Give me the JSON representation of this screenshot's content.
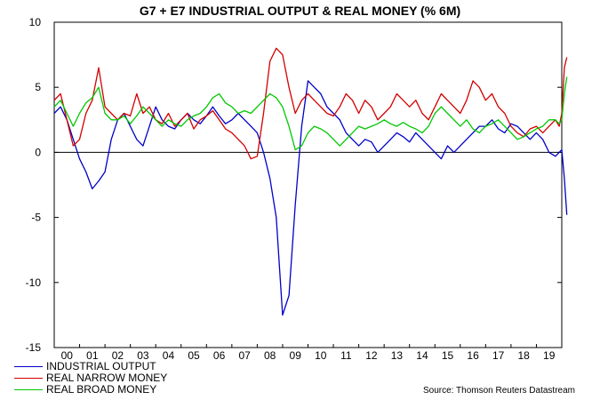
{
  "chart_data": {
    "type": "line",
    "title": "G7 + E7 INDUSTRIAL OUTPUT & REAL MONEY (% 6M)",
    "source": "Source: Thomson Reuters Datastream",
    "xlim": [
      2000.0,
      2020.0
    ],
    "ylim": [
      -15,
      10
    ],
    "yticks": [
      10,
      5,
      0,
      -5,
      -10,
      -15
    ],
    "ytick_labels": [
      "10",
      "5",
      "0",
      "-5",
      "-10",
      "-15"
    ],
    "xtick_labels": [
      "00",
      "01",
      "02",
      "03",
      "04",
      "05",
      "06",
      "07",
      "08",
      "09",
      "10",
      "11",
      "12",
      "13",
      "14",
      "15",
      "16",
      "17",
      "18",
      "19"
    ],
    "zero_line": true,
    "grid": false,
    "legend_position": "bottom-left",
    "series": [
      {
        "name": "INDUSTRIAL OUTPUT",
        "color": "#0000c8",
        "x": [
          2000.0,
          2000.25,
          2000.5,
          2000.75,
          2001.0,
          2001.25,
          2001.5,
          2001.75,
          2002.0,
          2002.25,
          2002.5,
          2002.75,
          2003.0,
          2003.25,
          2003.5,
          2003.75,
          2004.0,
          2004.25,
          2004.5,
          2004.75,
          2005.0,
          2005.25,
          2005.5,
          2005.75,
          2006.0,
          2006.25,
          2006.5,
          2006.75,
          2007.0,
          2007.25,
          2007.5,
          2007.75,
          2008.0,
          2008.25,
          2008.5,
          2008.75,
          2009.0,
          2009.25,
          2009.5,
          2009.75,
          2010.0,
          2010.25,
          2010.5,
          2010.75,
          2011.0,
          2011.25,
          2011.5,
          2011.75,
          2012.0,
          2012.25,
          2012.5,
          2012.75,
          2013.0,
          2013.25,
          2013.5,
          2013.75,
          2014.0,
          2014.25,
          2014.5,
          2014.75,
          2015.0,
          2015.25,
          2015.5,
          2015.75,
          2016.0,
          2016.25,
          2016.5,
          2016.75,
          2017.0,
          2017.25,
          2017.5,
          2017.75,
          2018.0,
          2018.25,
          2018.5,
          2018.75,
          2019.0,
          2019.25,
          2019.5,
          2019.75,
          2019.9,
          2020.0,
          2020.1,
          2020.2
        ],
        "y": [
          3.0,
          3.5,
          2.5,
          1.0,
          -0.5,
          -1.5,
          -2.8,
          -2.2,
          -1.5,
          1.0,
          2.5,
          3.0,
          2.0,
          1.0,
          0.5,
          2.0,
          3.5,
          2.5,
          2.0,
          1.8,
          2.5,
          3.0,
          2.5,
          2.2,
          2.8,
          3.5,
          2.8,
          2.2,
          2.5,
          3.0,
          2.5,
          2.0,
          1.5,
          0.0,
          -2.0,
          -5.0,
          -12.5,
          -11.0,
          -4.0,
          2.0,
          5.5,
          5.0,
          4.5,
          3.5,
          3.0,
          2.5,
          1.5,
          1.0,
          0.5,
          1.0,
          0.8,
          0.0,
          0.5,
          1.0,
          1.5,
          1.2,
          0.8,
          1.5,
          1.0,
          0.5,
          0.0,
          -0.5,
          0.5,
          0.0,
          0.5,
          1.0,
          1.5,
          2.0,
          2.0,
          2.5,
          1.8,
          1.5,
          2.2,
          2.0,
          1.5,
          1.0,
          1.5,
          1.0,
          0.0,
          -0.3,
          0.0,
          0.2,
          -2.0,
          -4.8
        ]
      },
      {
        "name": "REAL NARROW MONEY",
        "color": "#d20000",
        "x": [
          2000.0,
          2000.25,
          2000.5,
          2000.75,
          2001.0,
          2001.25,
          2001.5,
          2001.75,
          2002.0,
          2002.25,
          2002.5,
          2002.75,
          2003.0,
          2003.25,
          2003.5,
          2003.75,
          2004.0,
          2004.25,
          2004.5,
          2004.75,
          2005.0,
          2005.25,
          2005.5,
          2005.75,
          2006.0,
          2006.25,
          2006.5,
          2006.75,
          2007.0,
          2007.25,
          2007.5,
          2007.75,
          2008.0,
          2008.25,
          2008.5,
          2008.75,
          2009.0,
          2009.25,
          2009.5,
          2009.75,
          2010.0,
          2010.25,
          2010.5,
          2010.75,
          2011.0,
          2011.25,
          2011.5,
          2011.75,
          2012.0,
          2012.25,
          2012.5,
          2012.75,
          2013.0,
          2013.25,
          2013.5,
          2013.75,
          2014.0,
          2014.25,
          2014.5,
          2014.75,
          2015.0,
          2015.25,
          2015.5,
          2015.75,
          2016.0,
          2016.25,
          2016.5,
          2016.75,
          2017.0,
          2017.25,
          2017.5,
          2017.75,
          2018.0,
          2018.25,
          2018.5,
          2018.75,
          2019.0,
          2019.25,
          2019.5,
          2019.75,
          2019.9,
          2020.0,
          2020.1,
          2020.2
        ],
        "y": [
          4.0,
          4.5,
          2.5,
          0.5,
          1.0,
          3.0,
          4.0,
          6.5,
          3.5,
          3.0,
          2.5,
          3.0,
          2.8,
          4.5,
          3.0,
          3.5,
          2.5,
          2.2,
          3.0,
          2.0,
          2.5,
          3.0,
          1.8,
          2.5,
          2.8,
          3.2,
          2.5,
          1.8,
          1.5,
          1.0,
          0.5,
          -0.5,
          -0.3,
          3.0,
          7.0,
          8.0,
          7.5,
          5.0,
          3.0,
          4.0,
          4.5,
          4.0,
          3.5,
          3.0,
          2.8,
          3.5,
          4.5,
          4.0,
          3.0,
          4.0,
          3.5,
          2.5,
          3.0,
          3.5,
          4.5,
          4.0,
          3.5,
          4.0,
          3.0,
          2.5,
          3.5,
          4.5,
          4.0,
          3.5,
          3.0,
          4.0,
          5.5,
          5.0,
          4.0,
          4.5,
          3.5,
          3.0,
          2.0,
          1.5,
          1.2,
          1.8,
          2.0,
          1.5,
          2.0,
          2.5,
          2.0,
          3.0,
          6.5,
          7.3
        ]
      },
      {
        "name": "REAL BROAD MONEY",
        "color": "#00c800",
        "x": [
          2000.0,
          2000.25,
          2000.5,
          2000.75,
          2001.0,
          2001.25,
          2001.5,
          2001.75,
          2002.0,
          2002.25,
          2002.5,
          2002.75,
          2003.0,
          2003.25,
          2003.5,
          2003.75,
          2004.0,
          2004.25,
          2004.5,
          2004.75,
          2005.0,
          2005.25,
          2005.5,
          2005.75,
          2006.0,
          2006.25,
          2006.5,
          2006.75,
          2007.0,
          2007.25,
          2007.5,
          2007.75,
          2008.0,
          2008.25,
          2008.5,
          2008.75,
          2009.0,
          2009.25,
          2009.5,
          2009.75,
          2010.0,
          2010.25,
          2010.5,
          2010.75,
          2011.0,
          2011.25,
          2011.5,
          2011.75,
          2012.0,
          2012.25,
          2012.5,
          2012.75,
          2013.0,
          2013.25,
          2013.5,
          2013.75,
          2014.0,
          2014.25,
          2014.5,
          2014.75,
          2015.0,
          2015.25,
          2015.5,
          2015.75,
          2016.0,
          2016.25,
          2016.5,
          2016.75,
          2017.0,
          2017.25,
          2017.5,
          2017.75,
          2018.0,
          2018.25,
          2018.5,
          2018.75,
          2019.0,
          2019.25,
          2019.5,
          2019.75,
          2019.9,
          2020.0,
          2020.1,
          2020.2
        ],
        "y": [
          3.5,
          4.0,
          3.0,
          2.0,
          3.0,
          3.8,
          4.2,
          5.0,
          3.0,
          2.5,
          2.5,
          2.8,
          2.2,
          2.8,
          3.5,
          3.0,
          2.5,
          2.0,
          2.5,
          2.2,
          2.0,
          2.5,
          2.8,
          3.0,
          3.5,
          4.2,
          4.5,
          3.8,
          3.5,
          3.0,
          3.2,
          3.0,
          3.5,
          4.0,
          4.5,
          4.2,
          3.5,
          2.0,
          0.2,
          0.5,
          1.5,
          2.0,
          1.8,
          1.5,
          1.0,
          0.5,
          1.0,
          1.5,
          2.0,
          1.8,
          2.0,
          2.2,
          2.5,
          2.2,
          2.0,
          2.3,
          2.0,
          1.8,
          1.5,
          2.0,
          3.0,
          3.5,
          3.0,
          2.5,
          2.0,
          2.5,
          1.8,
          1.5,
          2.0,
          2.2,
          2.5,
          2.0,
          1.5,
          1.0,
          1.2,
          1.5,
          1.8,
          2.0,
          2.5,
          2.5,
          2.2,
          2.5,
          4.5,
          5.8
        ]
      }
    ]
  }
}
